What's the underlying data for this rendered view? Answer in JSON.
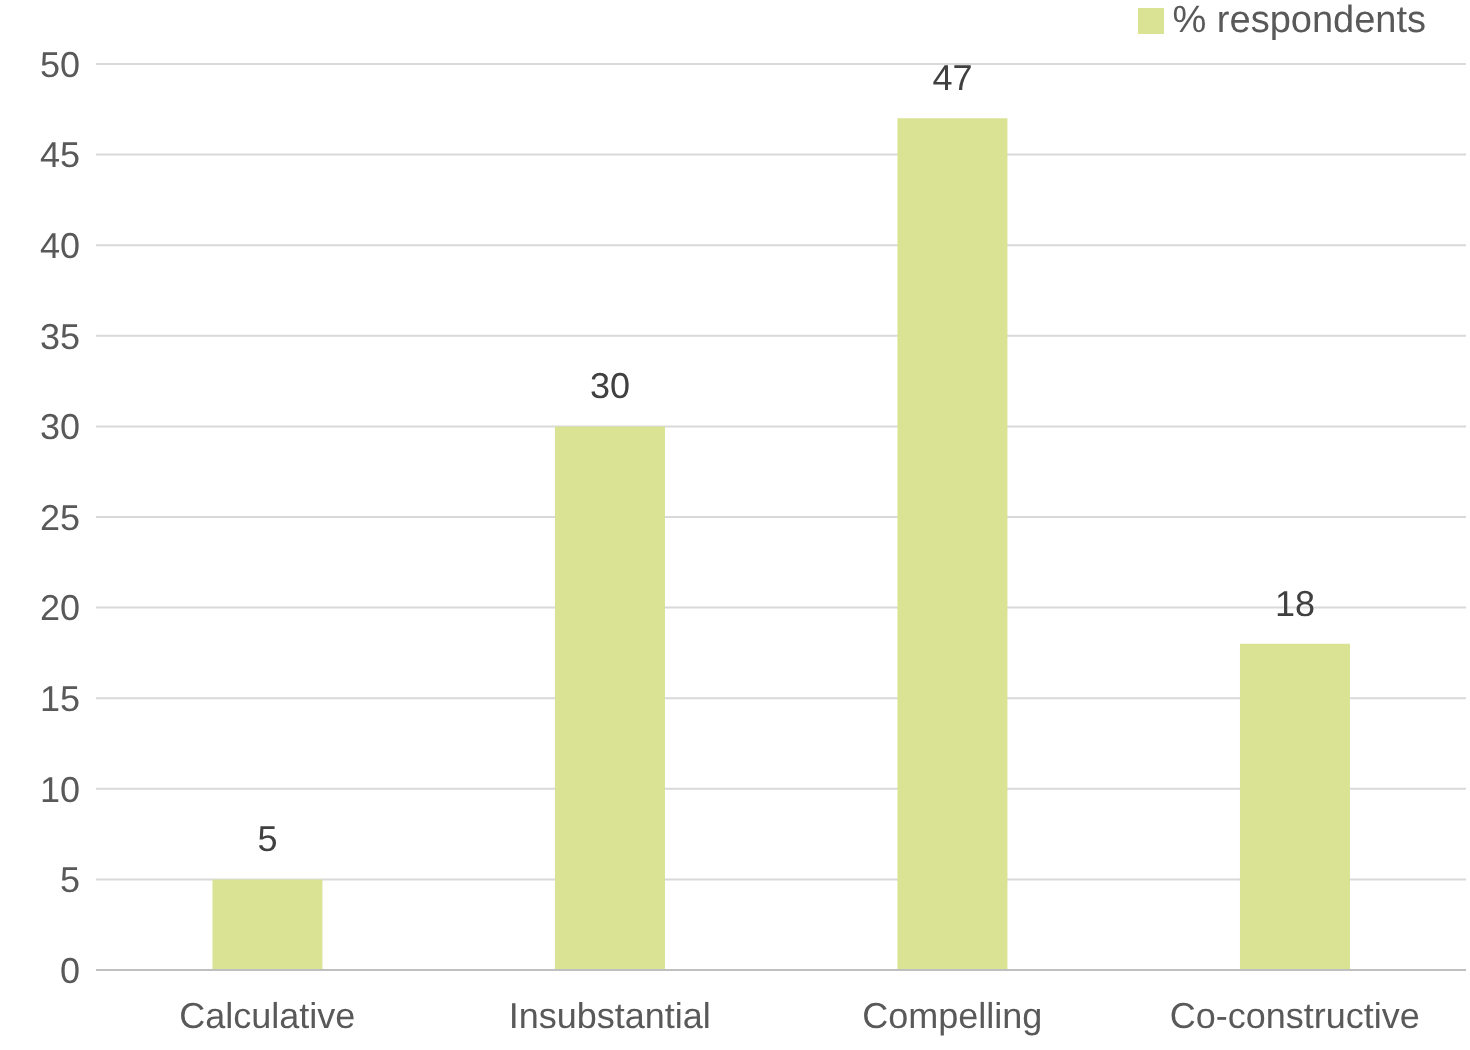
{
  "chart_data": {
    "type": "bar",
    "categories": [
      "Calculative",
      "Insubstantial",
      "Compelling",
      "Co-constructive"
    ],
    "series": [
      {
        "name": "% respondents",
        "color": "#d9e393",
        "values": [
          5,
          30,
          47,
          18
        ]
      }
    ],
    "ylim": [
      0,
      50
    ],
    "yticks": [
      0,
      5,
      10,
      15,
      20,
      25,
      30,
      35,
      40,
      45,
      50
    ],
    "grid": "y",
    "legend": "top right",
    "data_labels": true
  }
}
